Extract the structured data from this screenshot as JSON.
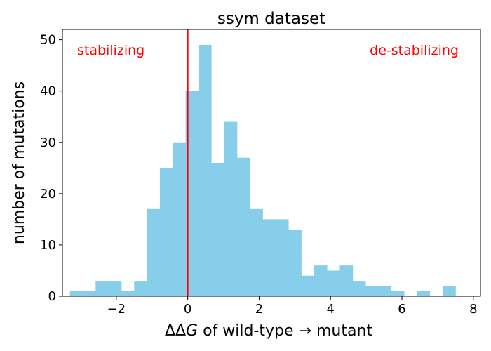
{
  "chart_data": {
    "type": "bar",
    "title": "ssym dataset",
    "xlabel_parts": {
      "delta_delta": "ΔΔ",
      "g_symbol": "G",
      "rest": " of wild-type  →  mutant"
    },
    "ylabel": "number of mutations",
    "xlim": [
      -3.51,
      8.2
    ],
    "ylim": [
      0,
      52
    ],
    "x_ticks": [
      -2,
      0,
      2,
      4,
      6,
      8
    ],
    "x_tick_labels": [
      "−2",
      "0",
      "2",
      "4",
      "6",
      "8"
    ],
    "y_ticks": [
      0,
      10,
      20,
      30,
      40,
      50
    ],
    "y_tick_labels": [
      "0",
      "10",
      "20",
      "30",
      "40",
      "50"
    ],
    "bin_edges": [
      -3.3,
      -2.94,
      -2.58,
      -2.22,
      -1.86,
      -1.5,
      -1.14,
      -0.78,
      -0.42,
      -0.06,
      0.3,
      0.66,
      1.02,
      1.38,
      1.74,
      2.1,
      2.46,
      2.82,
      3.18,
      3.54,
      3.9,
      4.26,
      4.62,
      4.98,
      5.34,
      5.7,
      6.06,
      6.42,
      6.78,
      7.14,
      7.5
    ],
    "bin_counts": [
      1,
      1,
      3,
      3,
      1,
      3,
      17,
      25,
      30,
      40,
      49,
      26,
      34,
      27,
      17,
      15,
      15,
      13,
      4,
      6,
      5,
      6,
      3,
      2,
      2,
      1,
      0,
      1,
      0,
      2
    ],
    "bar_color": "#87ceeb",
    "vline": {
      "x": 0,
      "color": "#ff0000"
    },
    "annotations": {
      "left": {
        "text": "stabilizing",
        "color": "#ff0000"
      },
      "right": {
        "text": "de-stabilizing",
        "color": "#ff0000"
      }
    }
  }
}
